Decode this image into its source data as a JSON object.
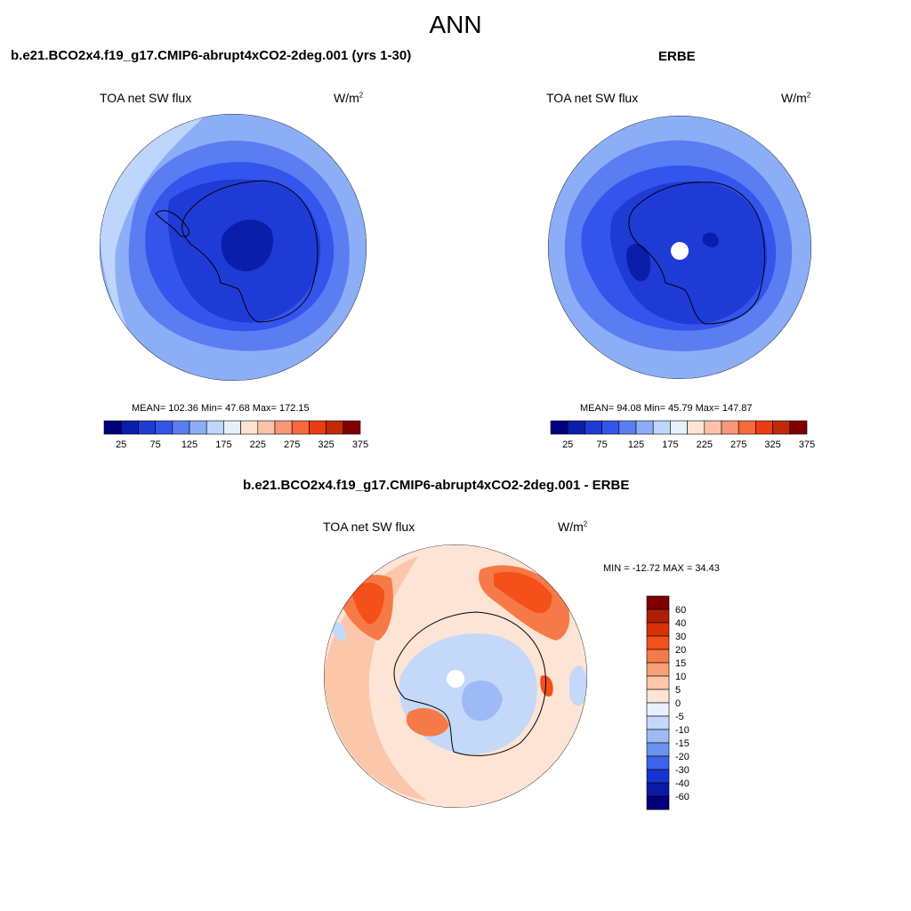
{
  "title": "ANN",
  "panels": [
    {
      "header": "b.e21.BCO2x4.f19_g17.CMIP6-abrupt4xCO2-2deg.001 (yrs 1-30)",
      "variable": "TOA net SW flux",
      "units": "W/m",
      "units_sup": "2",
      "stats": "MEAN= 102.36  Min=  47.68  Max= 172.15",
      "colorbar_ticks": [
        "25",
        "75",
        "125",
        "175",
        "225",
        "275",
        "325",
        "375"
      ]
    },
    {
      "header": "ERBE",
      "variable": "TOA net SW flux",
      "units": "W/m",
      "units_sup": "2",
      "stats": "MEAN=  94.08  Min=  45.79  Max= 147.87",
      "colorbar_ticks": [
        "25",
        "75",
        "125",
        "175",
        "225",
        "275",
        "325",
        "375"
      ]
    },
    {
      "header": "b.e21.BCO2x4.f19_g17.CMIP6-abrupt4xCO2-2deg.001 - ERBE",
      "variable": "TOA net SW flux",
      "units": "W/m",
      "units_sup": "2",
      "stats": "MIN = -12.72 MAX =  34.43",
      "colorbar_ticks": [
        "60",
        "40",
        "30",
        "20",
        "15",
        "10",
        "5",
        "0",
        "-5",
        "-10",
        "-15",
        "-20",
        "-30",
        "-40",
        "-60"
      ]
    }
  ],
  "colors": {
    "abs_scale": [
      "#00007f",
      "#0a1eaa",
      "#1f3bd6",
      "#3355ec",
      "#5b7df2",
      "#8caef6",
      "#bed6fb",
      "#e6f0fd",
      "#fde4d2",
      "#fbc2a8",
      "#f99877",
      "#f66a3c",
      "#ea3e12",
      "#c02a08",
      "#7f0000"
    ],
    "diff_scale": [
      "#7f0000",
      "#b01e06",
      "#d9300a",
      "#f4501a",
      "#f67a47",
      "#f8a07a",
      "#fbc6a9",
      "#fde4d4",
      "#e7f0fd",
      "#c4d8fa",
      "#9dbaf6",
      "#6c92f1",
      "#3c63ea",
      "#1634d2",
      "#0a1aa6",
      "#00007f"
    ]
  }
}
